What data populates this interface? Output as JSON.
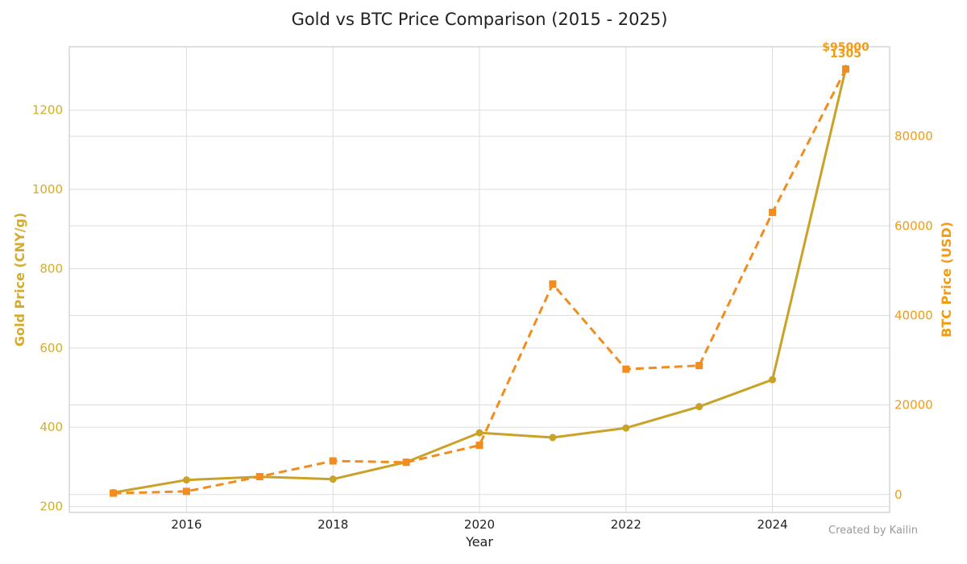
{
  "chart_data": {
    "type": "line",
    "title": "Gold vs BTC Price Comparison (2015 - 2025)",
    "xlabel": "Year",
    "xlim": [
      2014.4,
      2025.6
    ],
    "x_ticks": [
      2016,
      2018,
      2020,
      2022,
      2024
    ],
    "x_tick_labels": [
      "2016",
      "2018",
      "2020",
      "2022",
      "2024"
    ],
    "grid": true,
    "left_axis": {
      "label": "Gold Price (CNY/g)",
      "ylim": [
        185,
        1360
      ],
      "ticks": [
        200,
        400,
        600,
        800,
        1000,
        1200
      ],
      "tick_labels": [
        "200",
        "400",
        "600",
        "800",
        "1000",
        "1200"
      ],
      "color": "#d4ac2b"
    },
    "right_axis": {
      "label": "BTC Price (USD)",
      "ylim": [
        -4000,
        100000
      ],
      "ticks": [
        0,
        20000,
        40000,
        60000,
        80000
      ],
      "tick_labels": [
        "0",
        "20000",
        "40000",
        "60000",
        "80000"
      ],
      "color": "#f39c12"
    },
    "x": [
      2015,
      2016,
      2017,
      2018,
      2019,
      2020,
      2021,
      2022,
      2023,
      2024,
      2025
    ],
    "series": [
      {
        "name": "Gold",
        "axis": "left",
        "style": "solid",
        "marker": "circle",
        "color": "#c9a227",
        "values": [
          235,
          267,
          275,
          269,
          312,
          386,
          374,
          398,
          452,
          520,
          1305
        ]
      },
      {
        "name": "BTC",
        "axis": "right",
        "style": "dashed",
        "marker": "square",
        "color": "#f28c1e",
        "values": [
          300,
          700,
          4000,
          7500,
          7200,
          11000,
          47000,
          28000,
          28800,
          63000,
          95000
        ]
      }
    ],
    "annotations": [
      {
        "series": "BTC",
        "x": 2025,
        "text": "$95000"
      },
      {
        "series": "Gold",
        "x": 2025,
        "text": "1305"
      }
    ],
    "credit": "Created by Kailin"
  }
}
